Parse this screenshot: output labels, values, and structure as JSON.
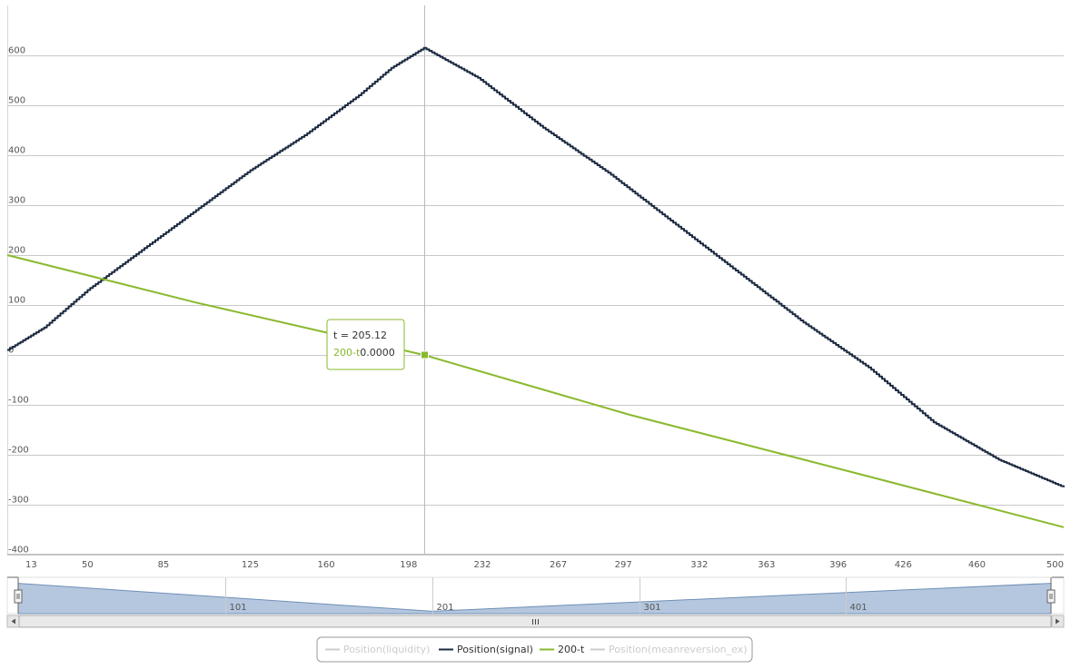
{
  "colors": {
    "signal": "#1b2a41",
    "linear": "#8ab92d",
    "hidden": "#cccccc",
    "grid": "#c8c8c8",
    "crosshair": "#b4bac8",
    "navigator_fill": "#b5c7de",
    "navigator_line": "#6f8fb6"
  },
  "tooltip": {
    "header": "t = 205.12",
    "series_name": "200-t",
    "value": "0.0000"
  },
  "chart_data": {
    "type": "line",
    "xlabel": "",
    "ylabel": "",
    "xlim": [
      13,
      500
    ],
    "ylim": [
      -400,
      650
    ],
    "y_ticks": [
      600,
      500,
      400,
      300,
      200,
      100,
      0,
      -100,
      -200,
      -300,
      -400
    ],
    "y_tick_labels": [
      "600",
      "500",
      "400",
      "300",
      "200",
      "100",
      "0",
      "-100",
      "-200",
      "-300",
      "-400"
    ],
    "x_ticks": [
      13,
      50,
      85,
      125,
      160,
      198,
      232,
      267,
      297,
      332,
      363,
      396,
      426,
      460,
      500
    ],
    "x_tick_labels": [
      "13",
      "50",
      "85",
      "125",
      "160",
      "198",
      "232",
      "267",
      "297",
      "332",
      "363",
      "396",
      "426",
      "460",
      "500"
    ],
    "grid": "horizontal",
    "crosshair_x": 205.12,
    "series": [
      {
        "name": "Position(signal)",
        "color": "#1b2a41",
        "x": [
          13,
          30,
          50,
          75,
          100,
          125,
          150,
          175,
          190,
          205,
          230,
          260,
          290,
          320,
          350,
          380,
          410,
          440,
          470,
          500
        ],
        "y": [
          10,
          55,
          130,
          210,
          290,
          370,
          440,
          520,
          575,
          615,
          555,
          455,
          365,
          265,
          165,
          65,
          -25,
          -135,
          -210,
          -265
        ]
      },
      {
        "name": "200-t",
        "color": "#8ab92d",
        "x": [
          13,
          100,
          205,
          300,
          400,
          500
        ],
        "y": [
          200,
          105,
          0,
          -120,
          -232,
          -345
        ]
      }
    ],
    "legend": {
      "placement": "bottom-center",
      "items": [
        {
          "name": "Position(liquidity)",
          "color": "#cccccc",
          "visible": false
        },
        {
          "name": "Position(signal)",
          "color": "#1b2a41",
          "visible": true
        },
        {
          "name": "200-t",
          "color": "#8ab92d",
          "visible": true
        },
        {
          "name": "Position(meanreversion_ex)",
          "color": "#cccccc",
          "visible": false
        }
      ]
    },
    "navigator": {
      "xlim": [
        1,
        500
      ],
      "tick_labels": [
        "101",
        "201",
        "301",
        "401"
      ],
      "ticks": [
        101,
        201,
        301,
        401
      ],
      "x": [
        1,
        201,
        500
      ],
      "y": [
        600,
        0,
        600
      ],
      "ylim": [
        -50,
        650
      ]
    }
  }
}
